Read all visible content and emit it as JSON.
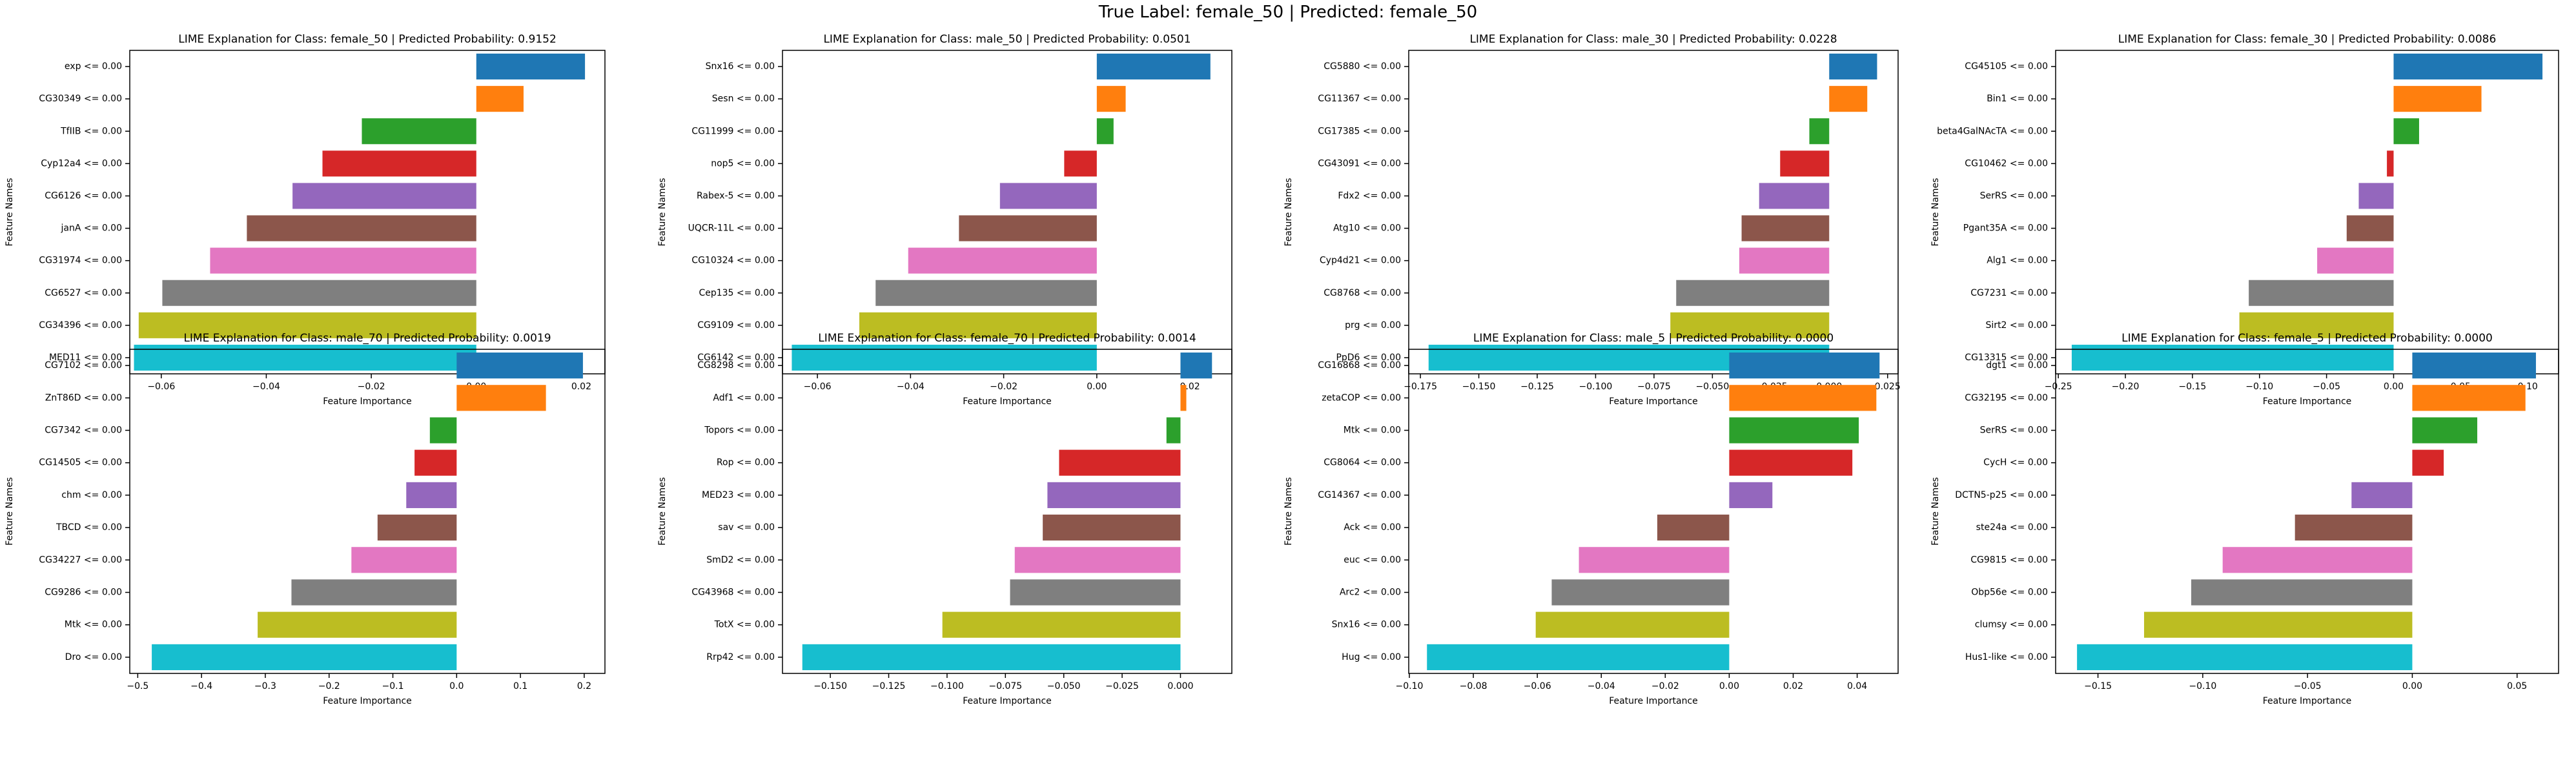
{
  "suptitle": "True Label: female_50 | Predicted: female_50",
  "colors": [
    "#1f77b4",
    "#ff7f0e",
    "#2ca02c",
    "#d62728",
    "#9467bd",
    "#8c564b",
    "#e377c2",
    "#7f7f7f",
    "#bcbd22",
    "#17becf"
  ],
  "chart_data": [
    {
      "type": "bar",
      "orientation": "horizontal",
      "title": "LIME Explanation for Class: female_50 | Predicted Probability: 0.9152",
      "xlabel": "Feature Importance",
      "ylabel": "Feature Names",
      "categories": [
        "exp <= 0.00",
        "CG30349 <= 0.00",
        "TfIIB <= 0.00",
        "Cyp12a4 <= 0.00",
        "CG6126 <= 0.00",
        "janA <= 0.00",
        "CG31974 <= 0.00",
        "CG6527 <= 0.00",
        "CG34396 <= 0.00",
        "MED11 <= 0.00"
      ],
      "values": [
        0.0207,
        0.009,
        -0.0218,
        -0.0293,
        -0.035,
        -0.0437,
        -0.0507,
        -0.0598,
        -0.0643,
        -0.0652
      ],
      "xlim": [
        -0.066,
        0.0245
      ],
      "xticks": [
        -0.06,
        -0.04,
        -0.02,
        0.0,
        0.02
      ],
      "xtick_labels": [
        "−0.06",
        "−0.04",
        "−0.02",
        "0.00",
        "0.02"
      ]
    },
    {
      "type": "bar",
      "orientation": "horizontal",
      "title": "LIME Explanation for Class: male_50 | Predicted Probability: 0.0501",
      "xlabel": "Feature Importance",
      "ylabel": "Feature Names",
      "categories": [
        "Snx16 <= 0.00",
        "Sesn <= 0.00",
        "CG11999 <= 0.00",
        "nop5 <= 0.00",
        "Rabex-5 <= 0.00",
        "UQCR-11L <= 0.00",
        "CG10324 <= 0.00",
        "Cep135 <= 0.00",
        "CG9109 <= 0.00",
        "CG6142 <= 0.00"
      ],
      "values": [
        0.0244,
        0.0062,
        0.0036,
        -0.007,
        -0.0208,
        -0.0296,
        -0.0405,
        -0.0475,
        -0.051,
        -0.0655
      ],
      "xlim": [
        -0.0675,
        0.029
      ],
      "xticks": [
        -0.06,
        -0.04,
        -0.02,
        0.0,
        0.02
      ],
      "xtick_labels": [
        "−0.06",
        "−0.04",
        "−0.02",
        "0.00",
        "0.02"
      ]
    },
    {
      "type": "bar",
      "orientation": "horizontal",
      "title": "LIME Explanation for Class: male_30 | Predicted Probability: 0.0228",
      "xlabel": "Feature Importance",
      "ylabel": "Feature Names",
      "categories": [
        "CG5880 <= 0.00",
        "CG11367 <= 0.00",
        "CG17385 <= 0.00",
        "CG43091 <= 0.00",
        "Fdx2 <= 0.00",
        "Atg10 <= 0.00",
        "Cyp4d21 <= 0.00",
        "CG8768 <= 0.00",
        "prg <= 0.00",
        "PpD6 <= 0.00"
      ],
      "values": [
        0.0205,
        0.0163,
        -0.0085,
        -0.021,
        -0.03,
        -0.0375,
        -0.0385,
        -0.0655,
        -0.068,
        -0.1715
      ],
      "xlim": [
        -0.18,
        0.0295
      ],
      "xticks": [
        -0.175,
        -0.15,
        -0.125,
        -0.1,
        -0.075,
        -0.05,
        -0.025,
        0.0,
        0.025
      ],
      "xtick_labels": [
        "−0.175",
        "−0.150",
        "−0.125",
        "−0.100",
        "−0.075",
        "−0.050",
        "−0.025",
        "0.000",
        "0.025"
      ]
    },
    {
      "type": "bar",
      "orientation": "horizontal",
      "title": "LIME Explanation for Class: female_30 | Predicted Probability: 0.0086",
      "xlabel": "Feature Importance",
      "ylabel": "Feature Names",
      "categories": [
        "CG45105 <= 0.00",
        "Bin1 <= 0.00",
        "beta4GalNAcTA <= 0.00",
        "CG10462 <= 0.00",
        "SerRS <= 0.00",
        "Pgant35A <= 0.00",
        "Alg1 <= 0.00",
        "CG7231 <= 0.00",
        "Sirt2 <= 0.00",
        "CG13315 <= 0.00"
      ],
      "values": [
        0.111,
        0.0655,
        0.019,
        -0.005,
        -0.026,
        -0.035,
        -0.057,
        -0.108,
        -0.115,
        -0.24
      ],
      "xlim": [
        -0.252,
        0.123
      ],
      "xticks": [
        -0.25,
        -0.2,
        -0.15,
        -0.1,
        -0.05,
        0.0,
        0.05,
        0.1
      ],
      "xtick_labels": [
        "−0.25",
        "−0.20",
        "−0.15",
        "−0.10",
        "−0.05",
        "0.00",
        "0.05",
        "0.10"
      ]
    },
    {
      "type": "bar",
      "orientation": "horizontal",
      "title": "LIME Explanation for Class: male_70 | Predicted Probability: 0.0019",
      "xlabel": "Feature Importance",
      "ylabel": "Feature Names",
      "categories": [
        "CG7102 <= 0.00",
        "ZnT86D <= 0.00",
        "CG7342 <= 0.00",
        "CG14505 <= 0.00",
        "chm <= 0.00",
        "TBCD <= 0.00",
        "CG34227 <= 0.00",
        "CG9286 <= 0.00",
        "Mtk <= 0.00",
        "Dro <= 0.00"
      ],
      "values": [
        0.198,
        0.14,
        -0.042,
        -0.066,
        -0.079,
        -0.124,
        -0.165,
        -0.259,
        -0.312,
        -0.478
      ],
      "xlim": [
        -0.5125,
        0.2325
      ],
      "xticks": [
        -0.5,
        -0.4,
        -0.3,
        -0.2,
        -0.1,
        0.0,
        0.1,
        0.2
      ],
      "xtick_labels": [
        "−0.5",
        "−0.4",
        "−0.3",
        "−0.2",
        "−0.1",
        "0.0",
        "0.1",
        "0.2"
      ]
    },
    {
      "type": "bar",
      "orientation": "horizontal",
      "title": "LIME Explanation for Class: female_70 | Predicted Probability: 0.0014",
      "xlabel": "Feature Importance",
      "ylabel": "Feature Names",
      "categories": [
        "CG8298 <= 0.00",
        "Adf1 <= 0.00",
        "Topors <= 0.00",
        "Rop <= 0.00",
        "MED23 <= 0.00",
        "sav <= 0.00",
        "SmD2 <= 0.00",
        "CG43968 <= 0.00",
        "TotX <= 0.00",
        "Rrp42 <= 0.00"
      ],
      "values": [
        0.0135,
        0.0025,
        -0.006,
        -0.052,
        -0.057,
        -0.059,
        -0.071,
        -0.073,
        -0.102,
        -0.162
      ],
      "xlim": [
        -0.1705,
        0.022
      ],
      "xticks": [
        -0.15,
        -0.125,
        -0.1,
        -0.075,
        -0.05,
        -0.025,
        0.0
      ],
      "xtick_labels": [
        "−0.150",
        "−0.125",
        "−0.100",
        "−0.075",
        "−0.050",
        "−0.025",
        "0.000"
      ]
    },
    {
      "type": "bar",
      "orientation": "horizontal",
      "title": "LIME Explanation for Class: male_5 | Predicted Probability: 0.0000",
      "xlabel": "Feature Importance",
      "ylabel": "Feature Names",
      "categories": [
        "CG16868 <= 0.00",
        "zetaCOP <= 0.00",
        "Mtk <= 0.00",
        "CG8064 <= 0.00",
        "CG14367 <= 0.00",
        "Ack <= 0.00",
        "euc <= 0.00",
        "Arc2 <= 0.00",
        "Snx16 <= 0.00",
        "Hug <= 0.00"
      ],
      "values": [
        0.047,
        0.046,
        0.0405,
        0.0385,
        0.0135,
        -0.0225,
        -0.047,
        -0.0555,
        -0.0605,
        -0.0945
      ],
      "xlim": [
        -0.1002,
        0.0528
      ],
      "xticks": [
        -0.1,
        -0.08,
        -0.06,
        -0.04,
        -0.02,
        0.0,
        0.02,
        0.04
      ],
      "xtick_labels": [
        "−0.10",
        "−0.08",
        "−0.06",
        "−0.04",
        "−0.02",
        "0.00",
        "0.02",
        "0.04"
      ]
    },
    {
      "type": "bar",
      "orientation": "horizontal",
      "title": "LIME Explanation for Class: female_5 | Predicted Probability: 0.0000",
      "xlabel": "Feature Importance",
      "ylabel": "Feature Names",
      "categories": [
        "dgt1 <= 0.00",
        "CG32195 <= 0.00",
        "SerRS <= 0.00",
        "CycH <= 0.00",
        "DCTN5-p25 <= 0.00",
        "ste24a <= 0.00",
        "CG9815 <= 0.00",
        "Obp56e <= 0.00",
        "clumsy <= 0.00",
        "Hus1-like <= 0.00"
      ],
      "values": [
        0.059,
        0.054,
        0.031,
        0.015,
        -0.029,
        -0.056,
        -0.0905,
        -0.1055,
        -0.128,
        -0.16
      ],
      "xlim": [
        -0.1702,
        0.0698
      ],
      "xticks": [
        -0.15,
        -0.1,
        -0.05,
        0.0,
        0.05
      ],
      "xtick_labels": [
        "−0.15",
        "−0.10",
        "−0.05",
        "0.00",
        "0.05"
      ]
    }
  ]
}
